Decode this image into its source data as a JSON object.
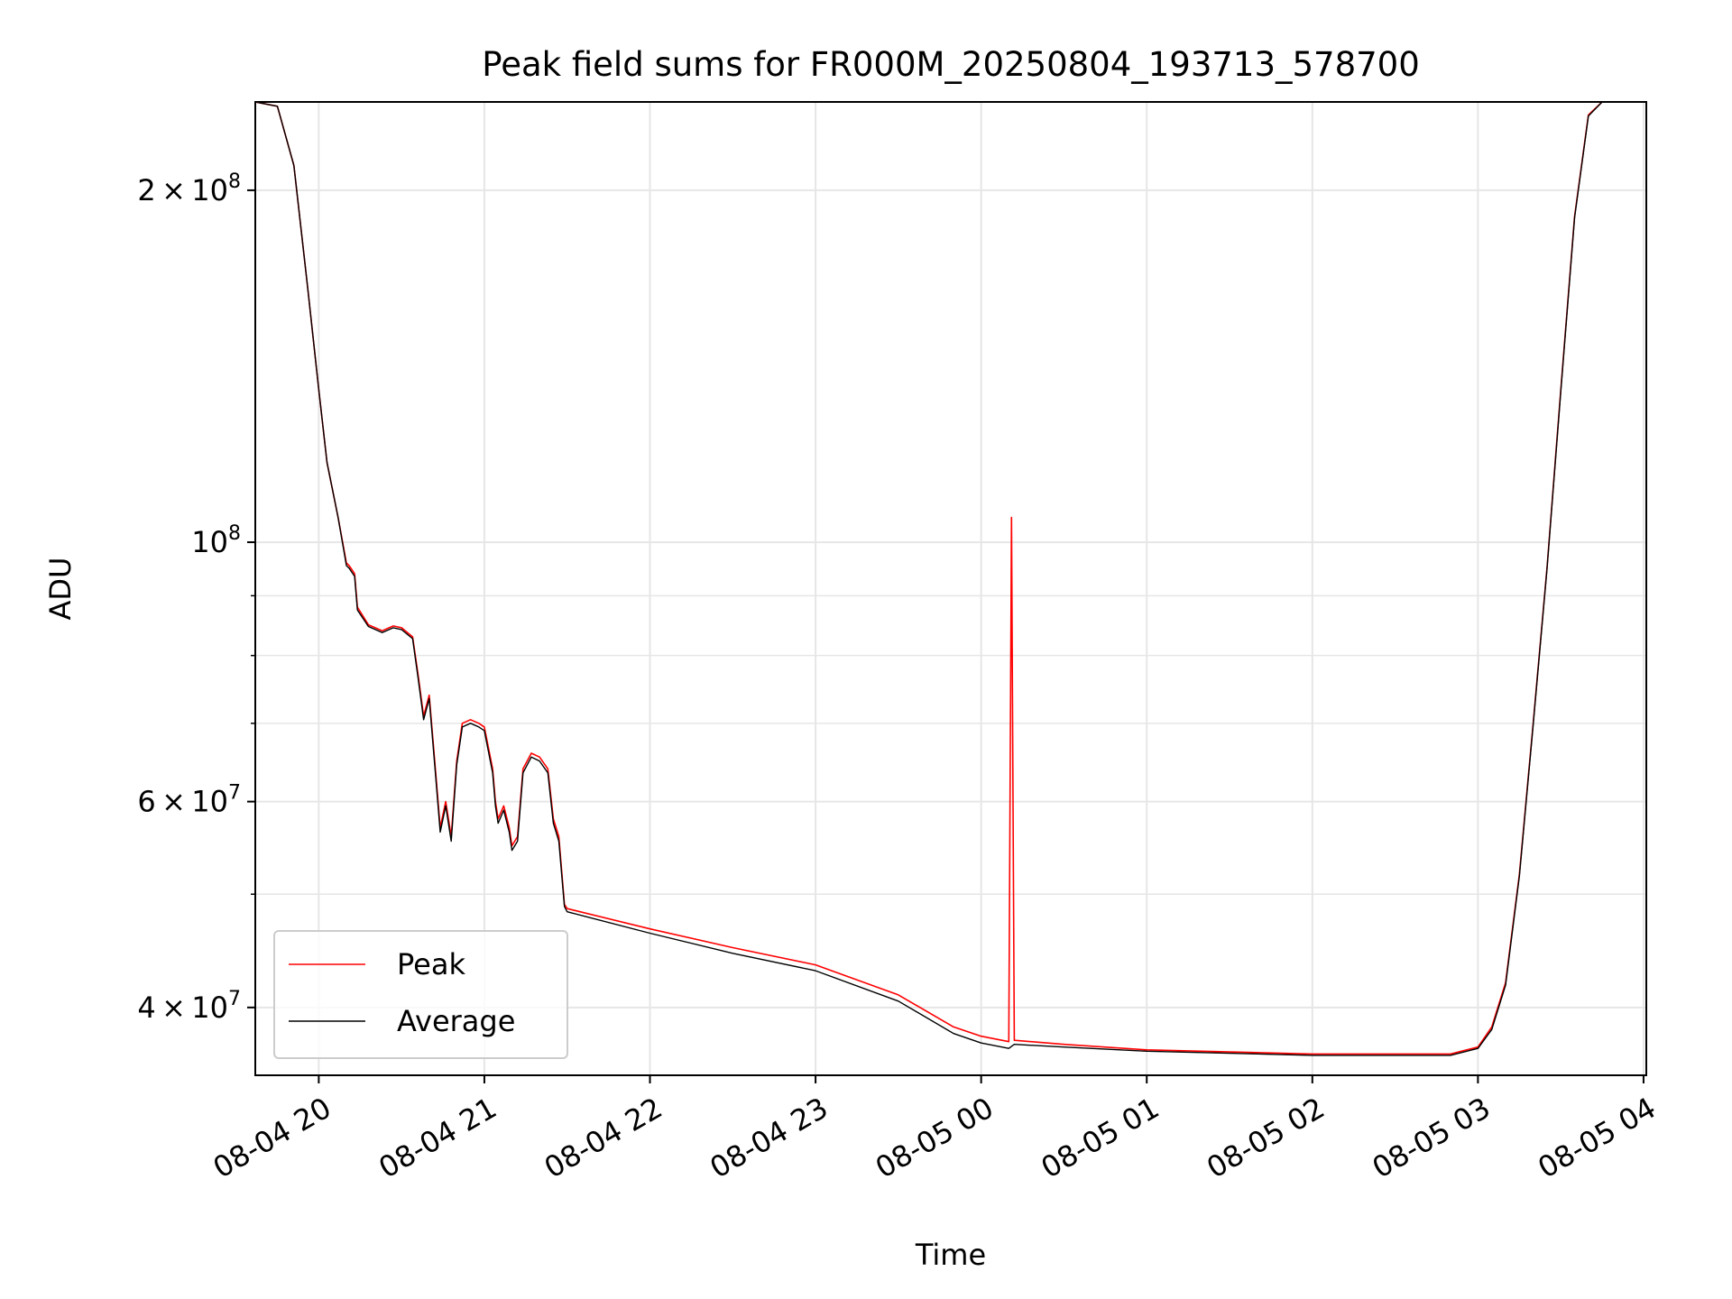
{
  "chart_data": {
    "type": "line",
    "title": "Peak field sums for FR000M_20250804_193713_578700",
    "xlabel": "Time",
    "ylabel": "ADU",
    "yscale": "log",
    "grid": true,
    "legend_position": "lower-left",
    "xlim": [
      "2025-08-04 19:37",
      "2025-08-05 04:01"
    ],
    "ylim": [
      35000000,
      238000000
    ],
    "x_ticks": [
      {
        "value": "2025-08-04 20:00",
        "label": "08-04 20"
      },
      {
        "value": "2025-08-04 21:00",
        "label": "08-04 21"
      },
      {
        "value": "2025-08-04 22:00",
        "label": "08-04 22"
      },
      {
        "value": "2025-08-04 23:00",
        "label": "08-04 23"
      },
      {
        "value": "2025-08-05 00:00",
        "label": "08-05 00"
      },
      {
        "value": "2025-08-05 01:00",
        "label": "08-05 01"
      },
      {
        "value": "2025-08-05 02:00",
        "label": "08-05 02"
      },
      {
        "value": "2025-08-05 03:00",
        "label": "08-05 03"
      },
      {
        "value": "2025-08-05 04:00",
        "label": "08-05 04"
      }
    ],
    "y_ticks": [
      {
        "value": 40000000,
        "mant": "4",
        "exp": "7"
      },
      {
        "value": 60000000,
        "mant": "6",
        "exp": "7"
      },
      {
        "value": 100000000,
        "mant": "",
        "exp": "8"
      },
      {
        "value": 200000000,
        "mant": "2",
        "exp": "8"
      }
    ],
    "y_minor_ticks": [
      50000000,
      70000000,
      80000000,
      90000000
    ],
    "series": [
      {
        "name": "Peak",
        "color": "#ff0000",
        "points": [
          [
            "2025-08-04 19:37",
            238000000
          ],
          [
            "2025-08-04 19:45",
            236000000
          ],
          [
            "2025-08-04 19:51",
            210000000
          ],
          [
            "2025-08-04 19:56",
            165000000
          ],
          [
            "2025-08-04 20:00",
            135000000
          ],
          [
            "2025-08-04 20:03",
            117000000
          ],
          [
            "2025-08-04 20:07",
            105000000
          ],
          [
            "2025-08-04 20:10",
            96000000
          ],
          [
            "2025-08-04 20:11",
            95500000
          ],
          [
            "2025-08-04 20:13",
            94000000
          ],
          [
            "2025-08-04 20:14",
            88000000
          ],
          [
            "2025-08-04 20:18",
            85000000
          ],
          [
            "2025-08-04 20:23",
            84000000
          ],
          [
            "2025-08-04 20:27",
            84800000
          ],
          [
            "2025-08-04 20:30",
            84500000
          ],
          [
            "2025-08-04 20:34",
            83000000
          ],
          [
            "2025-08-04 20:36",
            77000000
          ],
          [
            "2025-08-04 20:38",
            71000000
          ],
          [
            "2025-08-04 20:40",
            74000000
          ],
          [
            "2025-08-04 20:42",
            65000000
          ],
          [
            "2025-08-04 20:44",
            57000000
          ],
          [
            "2025-08-04 20:46",
            60000000
          ],
          [
            "2025-08-04 20:48",
            56000000
          ],
          [
            "2025-08-04 20:50",
            65000000
          ],
          [
            "2025-08-04 20:52",
            70000000
          ],
          [
            "2025-08-04 20:55",
            70500000
          ],
          [
            "2025-08-04 20:58",
            70000000
          ],
          [
            "2025-08-04 21:00",
            69500000
          ],
          [
            "2025-08-04 21:03",
            64000000
          ],
          [
            "2025-08-04 21:04",
            60000000
          ],
          [
            "2025-08-04 21:05",
            58000000
          ],
          [
            "2025-08-04 21:07",
            59500000
          ],
          [
            "2025-08-04 21:09",
            57000000
          ],
          [
            "2025-08-04 21:10",
            55000000
          ],
          [
            "2025-08-04 21:12",
            56000000
          ],
          [
            "2025-08-04 21:14",
            64000000
          ],
          [
            "2025-08-04 21:17",
            66000000
          ],
          [
            "2025-08-04 21:20",
            65500000
          ],
          [
            "2025-08-04 21:23",
            64000000
          ],
          [
            "2025-08-04 21:25",
            58000000
          ],
          [
            "2025-08-04 21:27",
            56000000
          ],
          [
            "2025-08-04 21:29",
            49000000
          ],
          [
            "2025-08-04 21:30",
            48600000
          ],
          [
            "2025-08-04 22:00",
            46700000
          ],
          [
            "2025-08-04 22:30",
            45000000
          ],
          [
            "2025-08-04 23:00",
            43500000
          ],
          [
            "2025-08-04 23:30",
            41000000
          ],
          [
            "2025-08-04 23:50",
            38500000
          ],
          [
            "2025-08-05 00:00",
            37800000
          ],
          [
            "2025-08-05 00:10",
            37400000
          ],
          [
            "2025-08-05 00:11",
            105000000
          ],
          [
            "2025-08-05 00:12",
            37500000
          ],
          [
            "2025-08-05 00:30",
            37200000
          ],
          [
            "2025-08-05 01:00",
            36800000
          ],
          [
            "2025-08-05 02:00",
            36500000
          ],
          [
            "2025-08-05 02:50",
            36500000
          ],
          [
            "2025-08-05 03:00",
            37000000
          ],
          [
            "2025-08-05 03:05",
            38500000
          ],
          [
            "2025-08-05 03:10",
            42000000
          ],
          [
            "2025-08-05 03:15",
            52000000
          ],
          [
            "2025-08-05 03:20",
            70000000
          ],
          [
            "2025-08-05 03:25",
            95000000
          ],
          [
            "2025-08-05 03:30",
            135000000
          ],
          [
            "2025-08-05 03:35",
            190000000
          ],
          [
            "2025-08-05 03:40",
            232000000
          ],
          [
            "2025-08-05 03:45",
            238000000
          ],
          [
            "2025-08-05 04:01",
            238000000
          ]
        ]
      },
      {
        "name": "Average",
        "color": "#000000",
        "points": [
          [
            "2025-08-04 19:37",
            238000000
          ],
          [
            "2025-08-04 19:45",
            236000000
          ],
          [
            "2025-08-04 19:51",
            210000000
          ],
          [
            "2025-08-04 19:56",
            165000000
          ],
          [
            "2025-08-04 20:00",
            135000000
          ],
          [
            "2025-08-04 20:03",
            117000000
          ],
          [
            "2025-08-04 20:07",
            105000000
          ],
          [
            "2025-08-04 20:10",
            95500000
          ],
          [
            "2025-08-04 20:11",
            95000000
          ],
          [
            "2025-08-04 20:13",
            93500000
          ],
          [
            "2025-08-04 20:14",
            87500000
          ],
          [
            "2025-08-04 20:18",
            84700000
          ],
          [
            "2025-08-04 20:23",
            83700000
          ],
          [
            "2025-08-04 20:27",
            84500000
          ],
          [
            "2025-08-04 20:30",
            84200000
          ],
          [
            "2025-08-04 20:34",
            82700000
          ],
          [
            "2025-08-04 20:36",
            76500000
          ],
          [
            "2025-08-04 20:38",
            70500000
          ],
          [
            "2025-08-04 20:40",
            73500000
          ],
          [
            "2025-08-04 20:42",
            64500000
          ],
          [
            "2025-08-04 20:44",
            56500000
          ],
          [
            "2025-08-04 20:46",
            59500000
          ],
          [
            "2025-08-04 20:48",
            55500000
          ],
          [
            "2025-08-04 20:50",
            64500000
          ],
          [
            "2025-08-04 20:52",
            69500000
          ],
          [
            "2025-08-04 20:55",
            70000000
          ],
          [
            "2025-08-04 20:58",
            69500000
          ],
          [
            "2025-08-04 21:00",
            69000000
          ],
          [
            "2025-08-04 21:03",
            63500000
          ],
          [
            "2025-08-04 21:04",
            59500000
          ],
          [
            "2025-08-04 21:05",
            57500000
          ],
          [
            "2025-08-04 21:07",
            59000000
          ],
          [
            "2025-08-04 21:09",
            56500000
          ],
          [
            "2025-08-04 21:10",
            54500000
          ],
          [
            "2025-08-04 21:12",
            55500000
          ],
          [
            "2025-08-04 21:14",
            63500000
          ],
          [
            "2025-08-04 21:17",
            65500000
          ],
          [
            "2025-08-04 21:20",
            65000000
          ],
          [
            "2025-08-04 21:23",
            63500000
          ],
          [
            "2025-08-04 21:25",
            57500000
          ],
          [
            "2025-08-04 21:27",
            55500000
          ],
          [
            "2025-08-04 21:29",
            48800000
          ],
          [
            "2025-08-04 21:30",
            48300000
          ],
          [
            "2025-08-04 22:00",
            46300000
          ],
          [
            "2025-08-04 22:30",
            44500000
          ],
          [
            "2025-08-04 23:00",
            43000000
          ],
          [
            "2025-08-04 23:30",
            40500000
          ],
          [
            "2025-08-04 23:50",
            38000000
          ],
          [
            "2025-08-05 00:00",
            37300000
          ],
          [
            "2025-08-05 00:10",
            36900000
          ],
          [
            "2025-08-05 00:12",
            37200000
          ],
          [
            "2025-08-05 00:30",
            37000000
          ],
          [
            "2025-08-05 01:00",
            36700000
          ],
          [
            "2025-08-05 02:00",
            36400000
          ],
          [
            "2025-08-05 02:50",
            36400000
          ],
          [
            "2025-08-05 03:00",
            36900000
          ],
          [
            "2025-08-05 03:05",
            38300000
          ],
          [
            "2025-08-05 03:10",
            41800000
          ],
          [
            "2025-08-05 03:15",
            51800000
          ],
          [
            "2025-08-05 03:20",
            69800000
          ],
          [
            "2025-08-05 03:25",
            94800000
          ],
          [
            "2025-08-05 03:30",
            134500000
          ],
          [
            "2025-08-05 03:35",
            189500000
          ],
          [
            "2025-08-05 03:40",
            231500000
          ],
          [
            "2025-08-05 03:45",
            238000000
          ],
          [
            "2025-08-05 04:01",
            238000000
          ]
        ]
      }
    ]
  }
}
